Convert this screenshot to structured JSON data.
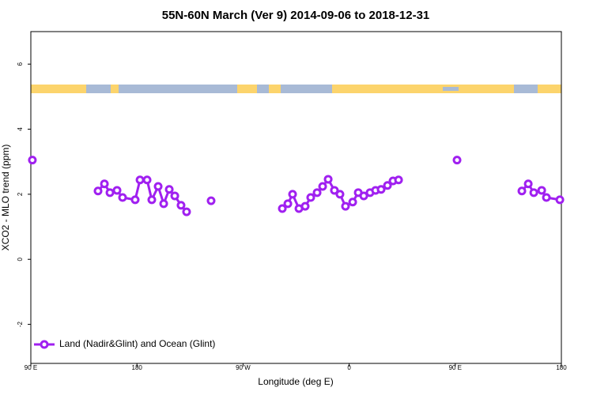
{
  "chart_data": {
    "type": "line",
    "title": "55N-60N March (Ver 9)   2014-09-06 to 2018-12-31",
    "x_label": "Longitude (deg E)",
    "y_label": "XCO2 - MLO trend (ppm)",
    "xlim": [
      90,
      540
    ],
    "ylim": [
      -3.2,
      7.0
    ],
    "xticks": [
      {
        "value": 90,
        "label": "90 E"
      },
      180,
      {
        "value": 270,
        "label": "90 W"
      },
      {
        "value": 360,
        "label": "0"
      },
      {
        "value": 450,
        "label": "90 E"
      },
      {
        "value": 540,
        "label": "180"
      }
    ],
    "yticks": [
      -2,
      0,
      2,
      4,
      6
    ],
    "legend": "bottom-left",
    "series": [
      {
        "name": "Land (Nadir&Glint) and Ocean (Glint)",
        "color": "#a020f0",
        "x": [
          91.3,
          null,
          147,
          152.4,
          157.1,
          163.1,
          167.8,
          178.5,
          182.6,
          188.6,
          192.6,
          198,
          202.7,
          207.4,
          212.1,
          217.4,
          222.1,
          null,
          242.9,
          null,
          303.3,
          308,
          312,
          317.4,
          322.7,
          327.4,
          332.8,
          337.5,
          342.2,
          347.5,
          352.2,
          356.9,
          363,
          367.7,
          372.4,
          377.7,
          382.4,
          387.1,
          392.5,
          397.2,
          401.9,
          null,
          451.5,
          null,
          506.5,
          511.9,
          516.6,
          523.3,
          527.3,
          538.7
        ],
        "values": [
          3.05,
          null,
          2.1,
          2.32,
          2.05,
          2.12,
          1.9,
          1.83,
          2.44,
          2.44,
          1.83,
          2.24,
          1.71,
          2.15,
          1.95,
          1.66,
          1.46,
          null,
          1.8,
          null,
          1.56,
          1.71,
          2.0,
          1.56,
          1.63,
          1.9,
          2.05,
          2.24,
          2.46,
          2.12,
          2.0,
          1.63,
          1.76,
          2.05,
          1.95,
          2.05,
          2.12,
          2.15,
          2.27,
          2.41,
          2.44,
          null,
          3.05,
          null,
          2.1,
          2.32,
          2.05,
          2.12,
          1.9,
          1.83
        ]
      }
    ]
  }
}
